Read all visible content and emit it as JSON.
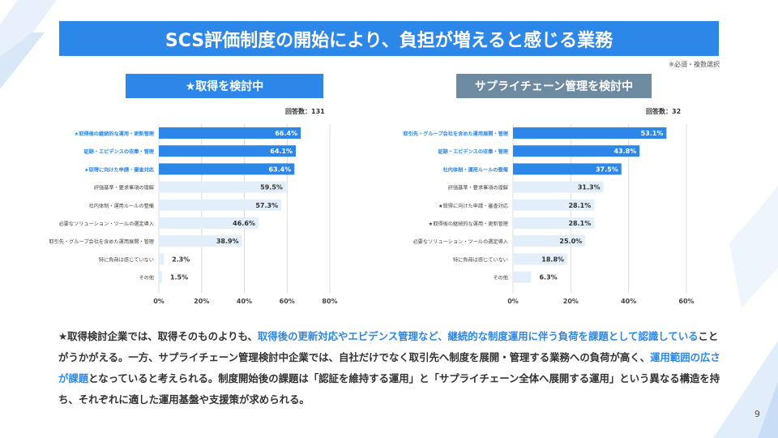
{
  "slide": {
    "title": "SCS評価制度の開始により、負担が増えると感じる業務",
    "note": "※必須・複数選択",
    "page_number": "9"
  },
  "chart_data": [
    {
      "type": "bar",
      "orientation": "horizontal",
      "panel_title": "★取得を検討中",
      "respondents": "回答数：131",
      "categories": [
        "★取得後の継続的な運用・更新管理",
        "証跡・エビデンスの収集・管理",
        "★取得に向けた申請・審査対応",
        "評価基準・要求事項の理解",
        "社内体制・運用ルールの整備",
        "必要なソリューション・ツールの選定導入",
        "取引先・グループ会社を含めた運用展開・管理",
        "特に負荷は感じていない",
        "その他"
      ],
      "values": [
        66.4,
        64.1,
        63.4,
        59.5,
        57.3,
        46.6,
        38.9,
        2.3,
        1.5
      ],
      "value_labels": [
        "66.4%",
        "64.1%",
        "63.4%",
        "59.5%",
        "57.3%",
        "46.6%",
        "38.9%",
        "2.3%",
        "1.5%"
      ],
      "highlighted_count": 3,
      "xlim": [
        0,
        80
      ],
      "xticks": [
        "0%",
        "20%",
        "40%",
        "60%",
        "80%"
      ],
      "xlabel": "",
      "ylabel": ""
    },
    {
      "type": "bar",
      "orientation": "horizontal",
      "panel_title": "サプライチェーン管理を検討中",
      "respondents": "回答数：32",
      "categories": [
        "取引先・グループ会社を含めた運用展開・管理",
        "証跡・エビデンスの収集・管理",
        "社内体制・運用ルールの整備",
        "評価基準・要求事項の理解",
        "★取得に向けた申請・審査対応",
        "★取得後の継続的な運用・更新管理",
        "必要なソリューション・ツールの選定導入",
        "特に負荷は感じていない",
        "その他"
      ],
      "values": [
        53.1,
        43.8,
        37.5,
        31.3,
        28.1,
        28.1,
        25.0,
        18.8,
        6.3
      ],
      "value_labels": [
        "53.1%",
        "43.8%",
        "37.5%",
        "31.3%",
        "28.1%",
        "28.1%",
        "25.0%",
        "18.8%",
        "6.3%"
      ],
      "highlighted_count": 3,
      "xlim": [
        0,
        60
      ],
      "xticks": [
        "0%",
        "20%",
        "40%",
        "60%"
      ],
      "xlabel": "",
      "ylabel": ""
    }
  ],
  "body": {
    "p1": "★取得検討企業では、取得そのものよりも、",
    "h1": "取得後の更新対応やエビデンス管理など、継続的な制度運用に伴う負荷を課題として認識している",
    "p2": "ことがうかがえる。一方、サプライチェーン管理検討中企業では、自社だけでなく取引先へ制度を展開・管理する業務への負荷が高く、",
    "h2": "運用範囲の広さが課題",
    "p3": "となっていると考えられる。制度開始後の課題は「認証を維持する運用」と「サプライチェーン全体へ展開する運用」という異なる構造を持ち、それぞれに適した運用基盤や支援策が求められる。"
  },
  "colors": {
    "accent": "#2d87e8",
    "panel_grey": "#6e8aa1",
    "bar_light": "#e3eefb",
    "highlight_text": "#2d87e8"
  }
}
